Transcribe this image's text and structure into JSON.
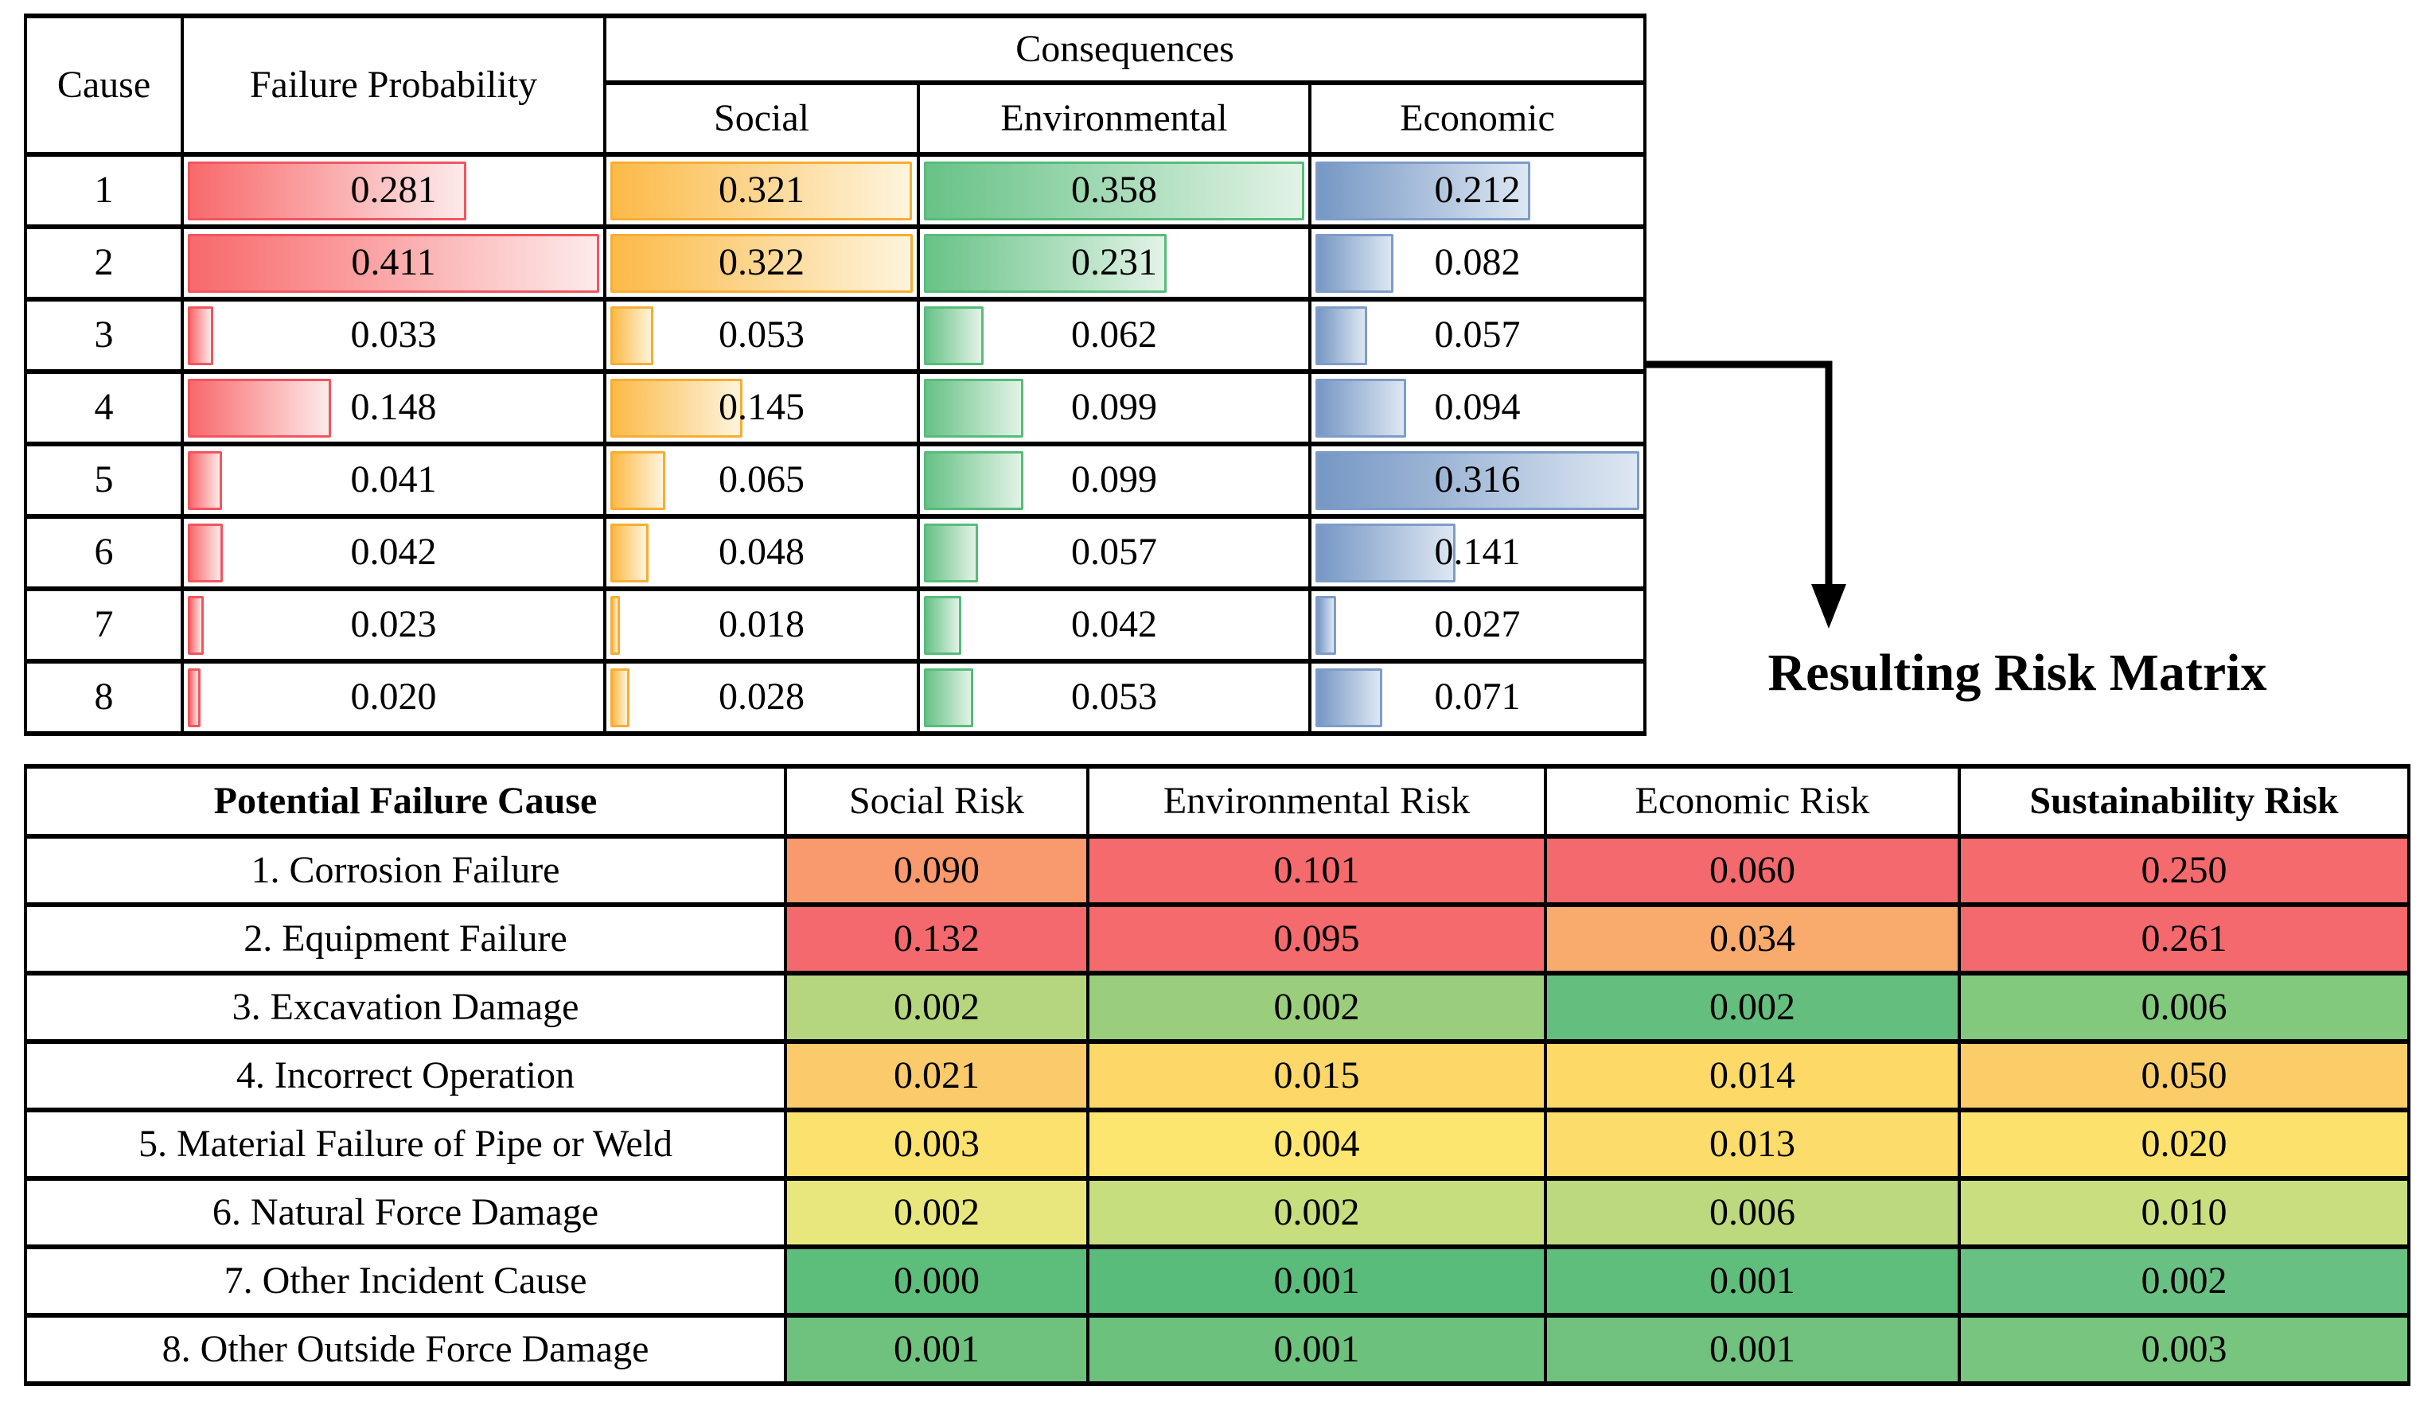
{
  "arrow_label": "Resulting Risk Matrix",
  "probability_table": {
    "headers": {
      "cause": "Cause",
      "failure_probability": "Failure Probability",
      "consequences": "Consequences",
      "social": "Social",
      "environmental": "Environmental",
      "economic": "Economic"
    },
    "bar_styles": [
      {
        "name": "failure-probability-bar",
        "fill_from": "#f8696b",
        "fill_to": "#fdeaea",
        "border": "#f25560"
      },
      {
        "name": "social-bar",
        "fill_from": "#fcba48",
        "fill_to": "#fdf4dd",
        "border": "#f7ad33"
      },
      {
        "name": "environmental-bar",
        "fill_from": "#68c287",
        "fill_to": "#e2f3e6",
        "border": "#57bc7b"
      },
      {
        "name": "economic-bar",
        "fill_from": "#7697c4",
        "fill_to": "#dde7f2",
        "border": "#7e9cc9"
      }
    ]
  },
  "risk_table": {
    "headers": [
      {
        "label": "Potential Failure Cause",
        "bold": true
      },
      {
        "label": "Social Risk",
        "bold": false
      },
      {
        "label": "Environmental Risk",
        "bold": false
      },
      {
        "label": "Economic Risk",
        "bold": false
      },
      {
        "label": "Sustainability Risk",
        "bold": true
      }
    ],
    "cell_colors": [
      [
        "#f9996e",
        "#f56a6d",
        "#f4696e",
        "#f56a6d"
      ],
      [
        "#f4696e",
        "#f56a6d",
        "#f9ab6e",
        "#f4696e"
      ],
      [
        "#b5d67e",
        "#9ace7c",
        "#64bf7e",
        "#82c87d"
      ],
      [
        "#fbca6b",
        "#fdd767",
        "#fdda68",
        "#fbcd69"
      ],
      [
        "#fbe16e",
        "#fde66f",
        "#fcdc6a",
        "#fce26d"
      ],
      [
        "#e7e77e",
        "#c6de7e",
        "#bcd97d",
        "#c9df7f"
      ],
      [
        "#5dbd7b",
        "#5abc7a",
        "#60be7c",
        "#68c183"
      ],
      [
        "#6ec27d",
        "#6cc17d",
        "#70c27e",
        "#77c57f"
      ]
    ]
  },
  "chart_data": [
    {
      "type": "table",
      "subtype": "data-bars",
      "title": "Failure probability and consequence scores per cause",
      "columns": [
        "Cause",
        "Failure Probability",
        "Social",
        "Environmental",
        "Economic"
      ],
      "column_groups": {
        "Consequences": [
          "Social",
          "Environmental",
          "Economic"
        ]
      },
      "bar_colors": {
        "Failure Probability": "red",
        "Social": "orange",
        "Environmental": "green",
        "Economic": "blue"
      },
      "bar_scaling": "bar length proportional to value / column maximum",
      "rows": [
        [
          1,
          0.281,
          0.321,
          0.358,
          0.212
        ],
        [
          2,
          0.411,
          0.322,
          0.231,
          0.082
        ],
        [
          3,
          0.033,
          0.053,
          0.062,
          0.057
        ],
        [
          4,
          0.148,
          0.145,
          0.099,
          0.094
        ],
        [
          5,
          0.041,
          0.065,
          0.099,
          0.316
        ],
        [
          6,
          0.042,
          0.048,
          0.057,
          0.141
        ],
        [
          7,
          0.023,
          0.018,
          0.042,
          0.027
        ],
        [
          8,
          0.02,
          0.028,
          0.053,
          0.071
        ]
      ]
    },
    {
      "type": "heatmap",
      "title": "Resulting Risk Matrix",
      "columns": [
        "Social Risk",
        "Environmental Risk",
        "Economic Risk",
        "Sustainability Risk"
      ],
      "rows": [
        "1. Corrosion Failure",
        "2. Equipment Failure",
        "3. Excavation Damage",
        "4. Incorrect Operation",
        "5. Material Failure of Pipe or Weld",
        "6. Natural Force Damage",
        "7. Other Incident Cause",
        "8. Other Outside Force Damage"
      ],
      "values": [
        [
          0.09,
          0.101,
          0.06,
          0.25
        ],
        [
          0.132,
          0.095,
          0.034,
          0.261
        ],
        [
          0.002,
          0.002,
          0.002,
          0.006
        ],
        [
          0.021,
          0.015,
          0.014,
          0.05
        ],
        [
          0.003,
          0.004,
          0.013,
          0.02
        ],
        [
          0.002,
          0.002,
          0.006,
          0.01
        ],
        [
          0.0,
          0.001,
          0.001,
          0.002
        ],
        [
          0.001,
          0.001,
          0.001,
          0.003
        ]
      ],
      "color_scale": "red (high) - yellow (medium) - green (low), scaled per column",
      "legend_position": "none",
      "grid": true
    }
  ]
}
